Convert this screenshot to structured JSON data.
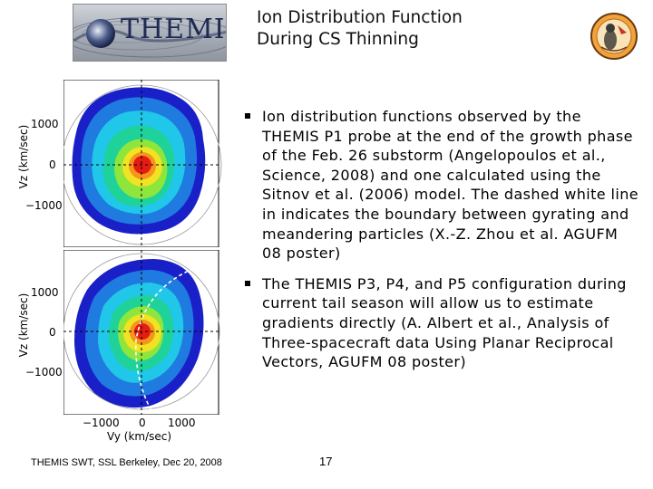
{
  "header": {
    "logo_text": "THEMIS",
    "title_line1": "Ion Distribution Function",
    "title_line2": "During CS Thinning"
  },
  "plots": {
    "top": {
      "y_axis_label": "Vz (km/sec)",
      "y_ticks": [
        "1000",
        "0",
        "−1000"
      ]
    },
    "bottom": {
      "y_axis_label": "Vz (km/sec)",
      "y_ticks": [
        "1000",
        "0",
        "−1000"
      ],
      "x_ticks": [
        "−1000",
        "0",
        "1000"
      ],
      "x_axis_label": "Vy (km/sec)"
    }
  },
  "bullets": [
    {
      "text": "Ion distribution functions observed by the THEMIS P1 probe at the end of the growth phase of the Feb. 26 substorm (Angelopoulos et al., Science, 2008) and one calculated using the Sitnov et al. (2006) model. The dashed white line in indicates the boundary between gyrating and meandering particles (X.-Z. Zhou et al. AGUFM 08 poster)"
    },
    {
      "text": "The THEMIS P3, P4, and P5 configuration during current tail season will allow us to estimate gradients directly (A. Albert et al., Analysis of Three-spacecraft data Using Planar Reciprocal Vectors, AGUFM 08 poster)"
    }
  ],
  "footer": {
    "left_text": "THEMIS SWT, SSL Berkeley, Dec 20, 2008",
    "page_number": "17"
  }
}
